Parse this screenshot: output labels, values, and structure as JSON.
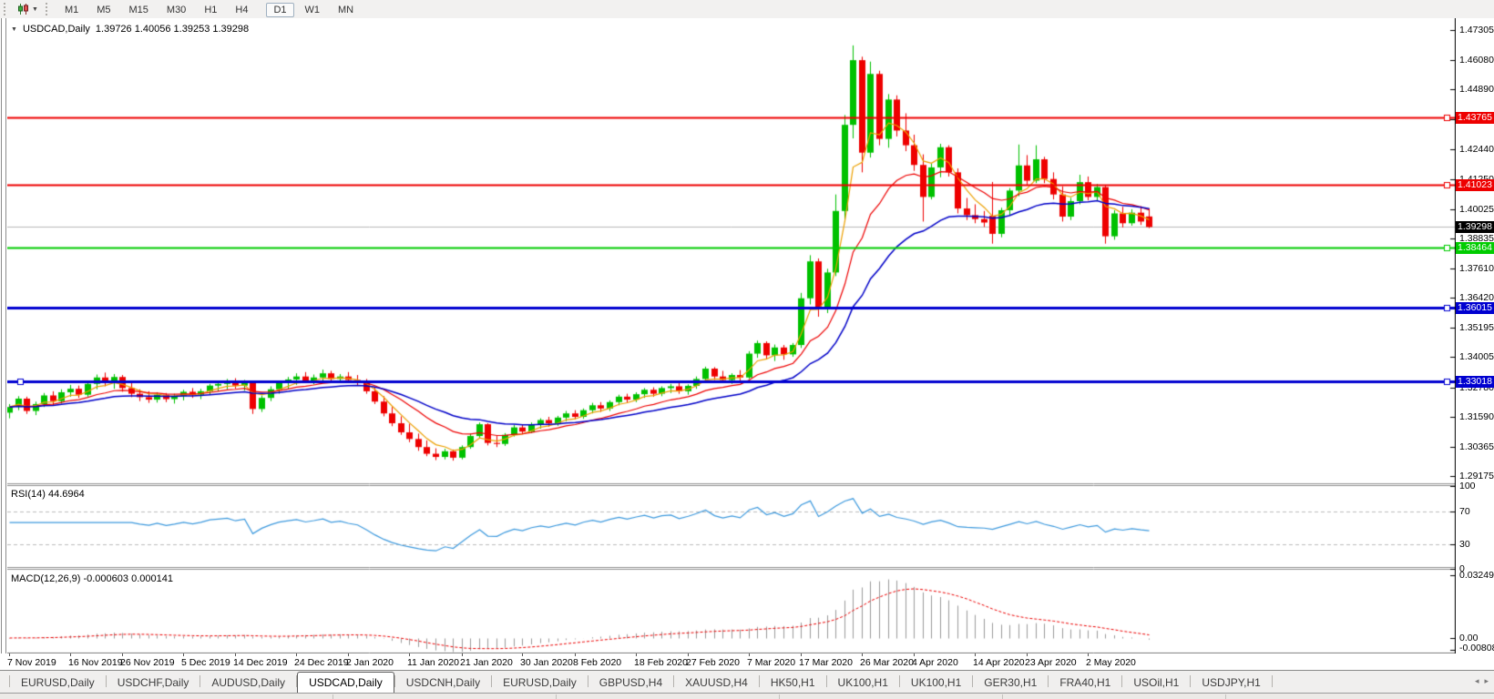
{
  "toolbar": {
    "chart_icon": "candlestick-chart-icon",
    "dropdown_icon": "chevron-down-icon",
    "timeframes": [
      "M1",
      "M5",
      "M15",
      "M30",
      "H1",
      "H4",
      "D1",
      "W1",
      "MN"
    ],
    "active_timeframe": "D1"
  },
  "chart": {
    "symbol_label": "USDCAD,Daily",
    "ohlc_label": "1.39726 1.40056 1.39253 1.39298"
  },
  "panels": {
    "rsi_label": "RSI(14) 44.6964",
    "macd_label": "MACD(12,26,9) -0.000603 0.000141"
  },
  "chart_data": {
    "type": "candlestick",
    "symbol": "USDCAD",
    "timeframe": "Daily",
    "last_ohlc": {
      "open": 1.39726,
      "high": 1.40056,
      "low": 1.39253,
      "close": 1.39298
    },
    "current_price": "1.39298",
    "y_axis_ticks": [
      "1.47305",
      "1.46080",
      "1.44890",
      "1.43665",
      "1.42440",
      "1.41250",
      "1.40025",
      "1.38835",
      "1.37610",
      "1.36420",
      "1.35195",
      "1.34005",
      "1.32780",
      "1.31590",
      "1.30365",
      "1.29175"
    ],
    "hlines": [
      {
        "label": "1.43765",
        "price": 1.43765,
        "color": "#ee0000",
        "width": 2
      },
      {
        "label": "1.41023",
        "price": 1.41023,
        "color": "#ee0000",
        "width": 2
      },
      {
        "label": "1.38464",
        "price": 1.38464,
        "color": "#00cc00",
        "width": 2
      },
      {
        "label": "1.36015",
        "price": 1.36015,
        "color": "#0000d0",
        "width": 3
      },
      {
        "label": "1.33018",
        "price": 1.33018,
        "color": "#0000d0",
        "width": 3
      }
    ],
    "date_ticks": [
      {
        "label": "7 Nov 2019",
        "bar": 0
      },
      {
        "label": "16 Nov 2019",
        "bar": 7
      },
      {
        "label": "26 Nov 2019",
        "bar": 13
      },
      {
        "label": "5 Dec 2019",
        "bar": 20
      },
      {
        "label": "14 Dec 2019",
        "bar": 26
      },
      {
        "label": "24 Dec 2019",
        "bar": 33
      },
      {
        "label": "2 Jan 2020",
        "bar": 39
      },
      {
        "label": "11 Jan 2020",
        "bar": 46
      },
      {
        "label": "21 Jan 2020",
        "bar": 52
      },
      {
        "label": "30 Jan 2020",
        "bar": 59
      },
      {
        "label": "8 Feb 2020",
        "bar": 65
      },
      {
        "label": "18 Feb 2020",
        "bar": 72
      },
      {
        "label": "27 Feb 2020",
        "bar": 78
      },
      {
        "label": "7 Mar 2020",
        "bar": 85
      },
      {
        "label": "17 Mar 2020",
        "bar": 91
      },
      {
        "label": "26 Mar 2020",
        "bar": 98
      },
      {
        "label": "4 Apr 2020",
        "bar": 104
      },
      {
        "label": "14 Apr 2020",
        "bar": 111
      },
      {
        "label": "23 Apr 2020",
        "bar": 117
      },
      {
        "label": "2 May 2020",
        "bar": 124
      }
    ],
    "indicators": {
      "ma_fast": {
        "type": "EMA",
        "period": 5,
        "color": "#eda000"
      },
      "ma_mid": {
        "type": "EMA",
        "period": 13,
        "color": "#ee0000"
      },
      "ma_slow": {
        "type": "EMA",
        "period": 26,
        "color": "#0000c8"
      },
      "rsi": {
        "period": 14,
        "value": "44.6964",
        "levels": [
          "100",
          "70",
          "30",
          "0"
        ],
        "color": "#3e9ade"
      },
      "macd": {
        "params": "12,26,9",
        "main": "-0.000603",
        "signal": "0.000141",
        "axis_labels": [
          "0.032493",
          "0.00",
          "-0.008086"
        ],
        "hist_color": "#9a9a9a",
        "signal_color": "#ee0000"
      }
    },
    "colors": {
      "up": "#00c100",
      "down": "#ee0000",
      "current_line": "#b8b8b8",
      "rsi_level_dash": "#bdbdbd"
    },
    "candles": [
      [
        1.3175,
        1.321,
        1.3152,
        1.3198
      ],
      [
        1.3198,
        1.3242,
        1.3185,
        1.3232
      ],
      [
        1.3232,
        1.324,
        1.317,
        1.3182
      ],
      [
        1.3182,
        1.322,
        1.3165,
        1.321
      ],
      [
        1.321,
        1.3255,
        1.3198,
        1.3245
      ],
      [
        1.3245,
        1.3262,
        1.3205,
        1.3222
      ],
      [
        1.3222,
        1.327,
        1.3212,
        1.3258
      ],
      [
        1.3258,
        1.3288,
        1.324,
        1.3272
      ],
      [
        1.3272,
        1.3285,
        1.3235,
        1.3248
      ],
      [
        1.3248,
        1.3302,
        1.324,
        1.3292
      ],
      [
        1.3292,
        1.333,
        1.327,
        1.3318
      ],
      [
        1.3318,
        1.3338,
        1.3282,
        1.3295
      ],
      [
        1.3295,
        1.3332,
        1.3272,
        1.332
      ],
      [
        1.332,
        1.3328,
        1.326,
        1.3275
      ],
      [
        1.3275,
        1.3295,
        1.3238,
        1.3252
      ],
      [
        1.3252,
        1.327,
        1.3222,
        1.3238
      ],
      [
        1.3238,
        1.3262,
        1.3215,
        1.3228
      ],
      [
        1.3228,
        1.3258,
        1.3216,
        1.3248
      ],
      [
        1.3248,
        1.3255,
        1.3218,
        1.323
      ],
      [
        1.323,
        1.3252,
        1.3212,
        1.3242
      ],
      [
        1.3242,
        1.3268,
        1.3225,
        1.326
      ],
      [
        1.326,
        1.3275,
        1.3235,
        1.3248
      ],
      [
        1.3248,
        1.3272,
        1.323,
        1.3262
      ],
      [
        1.3262,
        1.3292,
        1.325,
        1.3285
      ],
      [
        1.3285,
        1.33,
        1.3262,
        1.3292
      ],
      [
        1.3292,
        1.3312,
        1.327,
        1.33
      ],
      [
        1.33,
        1.3315,
        1.3272,
        1.3285
      ],
      [
        1.3285,
        1.3308,
        1.3265,
        1.3298
      ],
      [
        1.3298,
        1.3305,
        1.317,
        1.319
      ],
      [
        1.319,
        1.3245,
        1.3178,
        1.3235
      ],
      [
        1.3235,
        1.3282,
        1.3222,
        1.327
      ],
      [
        1.327,
        1.3305,
        1.3252,
        1.3295
      ],
      [
        1.3295,
        1.332,
        1.327,
        1.331
      ],
      [
        1.331,
        1.3335,
        1.3288,
        1.3322
      ],
      [
        1.3322,
        1.334,
        1.3295,
        1.3305
      ],
      [
        1.3305,
        1.333,
        1.329,
        1.3318
      ],
      [
        1.3318,
        1.335,
        1.33,
        1.3335
      ],
      [
        1.3335,
        1.3345,
        1.3302,
        1.3312
      ],
      [
        1.3312,
        1.3332,
        1.3295,
        1.3322
      ],
      [
        1.3322,
        1.334,
        1.33,
        1.3308
      ],
      [
        1.3308,
        1.3328,
        1.3285,
        1.3298
      ],
      [
        1.3298,
        1.3312,
        1.3252,
        1.3262
      ],
      [
        1.3262,
        1.3278,
        1.321,
        1.322
      ],
      [
        1.322,
        1.3242,
        1.316,
        1.3172
      ],
      [
        1.3172,
        1.3198,
        1.312,
        1.3132
      ],
      [
        1.3132,
        1.316,
        1.3085,
        1.3095
      ],
      [
        1.3095,
        1.313,
        1.3055,
        1.3068
      ],
      [
        1.3068,
        1.309,
        1.302,
        1.3035
      ],
      [
        1.3035,
        1.3062,
        1.2998,
        1.3008
      ],
      [
        1.3008,
        1.303,
        1.2982,
        1.2995
      ],
      [
        1.2995,
        1.3028,
        1.2985,
        1.3018
      ],
      [
        1.3018,
        1.3025,
        1.298,
        1.2992
      ],
      [
        1.2992,
        1.3042,
        1.2985,
        1.3035
      ],
      [
        1.3035,
        1.309,
        1.3028,
        1.308
      ],
      [
        1.308,
        1.3135,
        1.307,
        1.3128
      ],
      [
        1.3128,
        1.3132,
        1.3042,
        1.3052
      ],
      [
        1.3052,
        1.308,
        1.3035,
        1.3048
      ],
      [
        1.3048,
        1.3092,
        1.304,
        1.3085
      ],
      [
        1.3085,
        1.3125,
        1.3078,
        1.3115
      ],
      [
        1.3115,
        1.3128,
        1.3088,
        1.3098
      ],
      [
        1.3098,
        1.3135,
        1.3092,
        1.3128
      ],
      [
        1.3128,
        1.3152,
        1.311,
        1.3145
      ],
      [
        1.3145,
        1.3158,
        1.3118,
        1.3132
      ],
      [
        1.3132,
        1.3162,
        1.3122,
        1.3155
      ],
      [
        1.3155,
        1.3182,
        1.314,
        1.3172
      ],
      [
        1.3172,
        1.3185,
        1.3148,
        1.3158
      ],
      [
        1.3158,
        1.3192,
        1.315,
        1.3185
      ],
      [
        1.3185,
        1.3215,
        1.3172,
        1.3205
      ],
      [
        1.3205,
        1.3218,
        1.3178,
        1.3192
      ],
      [
        1.3192,
        1.3225,
        1.3182,
        1.3218
      ],
      [
        1.3218,
        1.3248,
        1.3205,
        1.324
      ],
      [
        1.324,
        1.3252,
        1.3215,
        1.3228
      ],
      [
        1.3228,
        1.3258,
        1.3218,
        1.325
      ],
      [
        1.325,
        1.3275,
        1.3235,
        1.3268
      ],
      [
        1.3268,
        1.3278,
        1.324,
        1.3252
      ],
      [
        1.3252,
        1.3282,
        1.3242,
        1.3275
      ],
      [
        1.3275,
        1.3292,
        1.3255,
        1.3282
      ],
      [
        1.3282,
        1.3298,
        1.3252,
        1.3262
      ],
      [
        1.3262,
        1.329,
        1.3248,
        1.3284
      ],
      [
        1.3284,
        1.3322,
        1.3272,
        1.3312
      ],
      [
        1.3312,
        1.3362,
        1.33,
        1.3354
      ],
      [
        1.3354,
        1.336,
        1.3308,
        1.3322
      ],
      [
        1.3322,
        1.3345,
        1.3298,
        1.3308
      ],
      [
        1.3308,
        1.3335,
        1.3292,
        1.3328
      ],
      [
        1.3328,
        1.3348,
        1.3305,
        1.3318
      ],
      [
        1.3318,
        1.3425,
        1.3312,
        1.3415
      ],
      [
        1.3415,
        1.3468,
        1.3398,
        1.3458
      ],
      [
        1.3458,
        1.3465,
        1.3392,
        1.3408
      ],
      [
        1.3408,
        1.3452,
        1.3385,
        1.344
      ],
      [
        1.344,
        1.345,
        1.339,
        1.3412
      ],
      [
        1.3412,
        1.3458,
        1.3402,
        1.345
      ],
      [
        1.345,
        1.3662,
        1.3438,
        1.364
      ],
      [
        1.364,
        1.3815,
        1.3615,
        1.379
      ],
      [
        1.379,
        1.3802,
        1.3565,
        1.3598
      ],
      [
        1.3598,
        1.376,
        1.358,
        1.3745
      ],
      [
        1.3745,
        1.4062,
        1.373,
        1.3995
      ],
      [
        1.3995,
        1.4385,
        1.3952,
        1.4345
      ],
      [
        1.4345,
        1.4668,
        1.429,
        1.4608
      ],
      [
        1.4608,
        1.4622,
        1.4152,
        1.4232
      ],
      [
        1.4232,
        1.4602,
        1.4212,
        1.4552
      ],
      [
        1.4552,
        1.4565,
        1.4262,
        1.4288
      ],
      [
        1.4288,
        1.447,
        1.4252,
        1.4448
      ],
      [
        1.4448,
        1.4465,
        1.4298,
        1.4322
      ],
      [
        1.4322,
        1.4392,
        1.4238,
        1.4262
      ],
      [
        1.4262,
        1.4305,
        1.4158,
        1.4182
      ],
      [
        1.4182,
        1.4225,
        1.3952,
        1.4052
      ],
      [
        1.4052,
        1.4188,
        1.4042,
        1.4172
      ],
      [
        1.4172,
        1.4268,
        1.4132,
        1.4254
      ],
      [
        1.4254,
        1.4262,
        1.4135,
        1.4152
      ],
      [
        1.4152,
        1.4168,
        1.3985,
        1.4005
      ],
      [
        1.4005,
        1.4048,
        1.3958,
        1.3978
      ],
      [
        1.3978,
        1.4022,
        1.3945,
        1.3962
      ],
      [
        1.3962,
        1.3995,
        1.393,
        1.3948
      ],
      [
        1.3975,
        1.4113,
        1.3862,
        1.3902
      ],
      [
        1.3902,
        1.4008,
        1.3888,
        1.3998
      ],
      [
        1.3998,
        1.4088,
        1.3978,
        1.4078
      ],
      [
        1.4078,
        1.4265,
        1.4055,
        1.418
      ],
      [
        1.418,
        1.4222,
        1.4098,
        1.4118
      ],
      [
        1.4118,
        1.4262,
        1.4108,
        1.4205
      ],
      [
        1.4205,
        1.4215,
        1.4108,
        1.4125
      ],
      [
        1.4125,
        1.4152,
        1.4042,
        1.4062
      ],
      [
        1.4062,
        1.4095,
        1.3952,
        1.3972
      ],
      [
        1.3972,
        1.4048,
        1.3958,
        1.4035
      ],
      [
        1.4035,
        1.4142,
        1.4022,
        1.4112
      ],
      [
        1.4112,
        1.4135,
        1.4038,
        1.4052
      ],
      [
        1.4052,
        1.4105,
        1.4035,
        1.4092
      ],
      [
        1.4092,
        1.4098,
        1.3862,
        1.3892
      ],
      [
        1.3892,
        1.3998,
        1.3878,
        1.3985
      ],
      [
        1.3985,
        1.4012,
        1.3928,
        1.3945
      ],
      [
        1.3945,
        1.4002,
        1.3935,
        1.3988
      ],
      [
        1.3988,
        1.4015,
        1.3938,
        1.3952
      ],
      [
        1.39726,
        1.40056,
        1.39253,
        1.39298
      ]
    ]
  },
  "tabs": {
    "items": [
      "EURUSD,Daily",
      "USDCHF,Daily",
      "AUDUSD,Daily",
      "USDCAD,Daily",
      "USDCNH,Daily",
      "EURUSD,Daily",
      "GBPUSD,H4",
      "XAUUSD,H4",
      "HK50,H1",
      "UK100,H1",
      "UK100,H1",
      "GER30,H1",
      "FRA40,H1",
      "USOil,H1",
      "USDJPY,H1"
    ],
    "active_index": 3,
    "scroll_left": "◂",
    "scroll_right": "▸"
  }
}
